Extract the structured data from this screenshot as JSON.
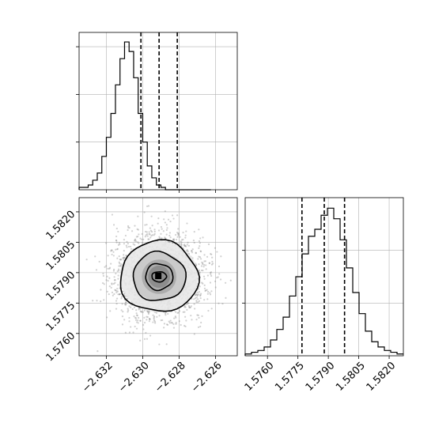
{
  "chart_data": [
    {
      "type": "histogram",
      "panel": "top-left",
      "parameter": "x",
      "xlim": [
        -2.6335,
        -2.6248
      ],
      "grid": true,
      "x_ticks": [
        -2.632,
        -2.63,
        -2.628,
        -2.626
      ],
      "bins": [
        -2.6335,
        -2.63325,
        -2.633,
        -2.63275,
        -2.6325,
        -2.63225,
        -2.632,
        -2.63175,
        -2.6315,
        -2.63125,
        -2.631,
        -2.63075,
        -2.6305,
        -2.63025,
        -2.63,
        -2.62975,
        -2.6295,
        -2.62925,
        -2.629,
        -2.62875,
        -2.6285,
        -2.62825,
        -2.628,
        -2.62775,
        -2.6275,
        -2.62725,
        -2.627,
        -2.62675,
        -2.6265,
        -2.62625
      ],
      "counts": [
        1,
        1,
        2,
        4,
        7,
        14,
        22,
        32,
        44,
        55,
        62,
        58,
        47,
        32,
        20,
        10,
        5,
        2,
        1,
        0,
        0,
        0,
        0,
        0,
        0,
        0,
        0,
        0,
        0
      ],
      "ylim": [
        0,
        66
      ],
      "quantiles": [
        -2.6301,
        -2.6291,
        -2.6281
      ]
    },
    {
      "type": "scatter-density-contour",
      "panel": "bottom-left",
      "parameters": [
        "x",
        "y"
      ],
      "xlim": [
        -2.6335,
        -2.6248
      ],
      "ylim": [
        1.5749,
        1.5827
      ],
      "x_ticks": [
        -2.632,
        -2.63,
        -2.628,
        -2.626
      ],
      "y_ticks": [
        1.576,
        1.5775,
        1.579,
        1.5805,
        1.582
      ],
      "center": [
        -2.6291,
        1.5788
      ],
      "contour_levels": [
        {
          "level": "outer",
          "sx": 0.00215,
          "sy": 0.00175
        },
        {
          "level": "mid",
          "sx": 0.00145,
          "sy": 0.0012
        },
        {
          "level": "inner",
          "sx": 0.00075,
          "sy": 0.00065
        },
        {
          "level": "core",
          "sx": 0.0004,
          "sy": 0.00025
        }
      ],
      "grid": true
    },
    {
      "type": "histogram",
      "panel": "bottom-right",
      "parameter": "y",
      "xlim": [
        1.5749,
        1.5827
      ],
      "grid": true,
      "x_ticks": [
        1.576,
        1.5775,
        1.579,
        1.5805,
        1.582
      ],
      "counts": [
        1,
        2,
        3,
        5,
        9,
        15,
        22,
        34,
        45,
        58,
        68,
        72,
        80,
        84,
        78,
        66,
        50,
        36,
        24,
        14,
        8,
        5,
        3,
        2,
        1
      ],
      "ylim": [
        0,
        90
      ],
      "quantiles": [
        1.5777,
        1.5788,
        1.5798
      ]
    }
  ],
  "axis_labels": {
    "x_bottom_left": [
      "−2.632",
      "−2.630",
      "−2.628",
      "−2.626"
    ],
    "y_left": [
      "1.5760",
      "1.5775",
      "1.5790",
      "1.5805",
      "1.5820"
    ],
    "x_bottom_right": [
      "1.5760",
      "1.5775",
      "1.5790",
      "1.5805",
      "1.5820"
    ]
  }
}
